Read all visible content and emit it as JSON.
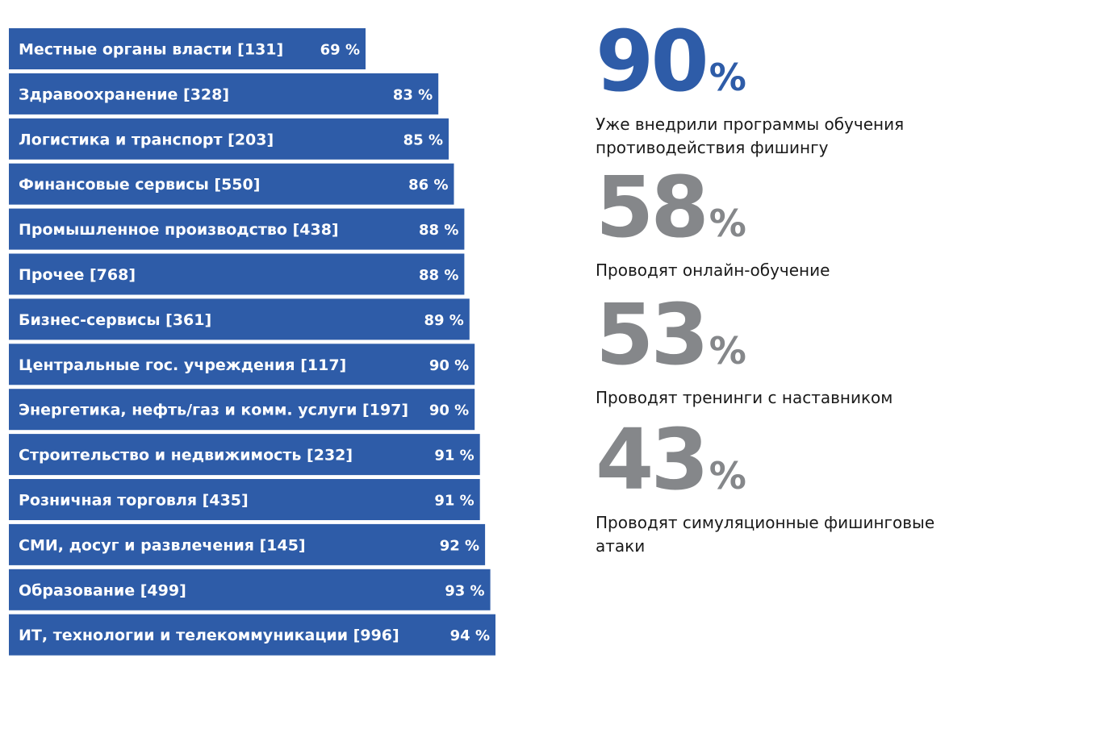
{
  "chart_data": {
    "type": "bar",
    "orientation": "horizontal",
    "value_suffix": "%",
    "bar_color": "#2e5ca8",
    "categories": [
      "Местные органы власти [131]",
      "Здравоохранение [328]",
      "Логистика и транспорт [203]",
      "Финансовые сервисы [550]",
      "Промышленное производство [438]",
      "Прочее [768]",
      "Бизнес-сервисы [361]",
      "Центральные гос. учреждения [117]",
      "Энергетика, нефть/газ и комм. услуги [197]",
      "Строительство и недвижимость [232]",
      "Розничная торговля [435]",
      "СМИ, досуг и развлечения [145]",
      "Образование [499]",
      "ИТ, технологии и телекоммуникации [996]"
    ],
    "values": [
      69,
      83,
      85,
      86,
      88,
      88,
      89,
      90,
      90,
      91,
      91,
      92,
      93,
      94
    ],
    "value_labels": [
      "69 %",
      "83 %",
      "85 %",
      "86 %",
      "88 %",
      "88 %",
      "89 %",
      "90 %",
      "90 %",
      "91 %",
      "91 %",
      "92 %",
      "93 %",
      "94 %"
    ]
  },
  "stats": [
    {
      "number": "90",
      "unit": "%",
      "color": "#2e5ca8",
      "description": "Уже внедрили программы обучения противодействия фишингу"
    },
    {
      "number": "58",
      "unit": "%",
      "color": "#85878a",
      "description": "Проводят онлайн-обучение"
    },
    {
      "number": "53",
      "unit": "%",
      "color": "#85878a",
      "description": "Проводят тренинги с наставником"
    },
    {
      "number": "43",
      "unit": "%",
      "color": "#85878a",
      "description": "Проводят симуляционные фишинговые атаки"
    }
  ]
}
